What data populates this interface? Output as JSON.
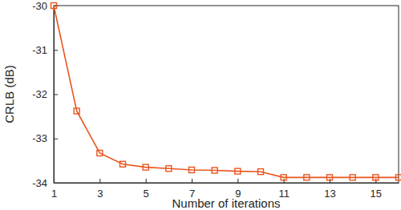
{
  "chart_data": {
    "type": "line",
    "x_label": "Number of iterations",
    "y_label": "CRLB (dB)",
    "x": [
      1,
      2,
      3,
      4,
      5,
      6,
      7,
      8,
      9,
      10,
      11,
      12,
      13,
      14,
      15,
      16
    ],
    "values": [
      -30.0,
      -32.38,
      -33.33,
      -33.58,
      -33.65,
      -33.68,
      -33.71,
      -33.72,
      -33.74,
      -33.75,
      -33.88,
      -33.88,
      -33.88,
      -33.88,
      -33.88,
      -33.88
    ],
    "color": "#e8561e",
    "marker": "square",
    "line_style": "solid",
    "xlim": [
      1,
      16
    ],
    "xticks": [
      1,
      3,
      5,
      7,
      9,
      11,
      13,
      15
    ],
    "ylim": [
      -34,
      -30
    ],
    "yticks": [
      -30,
      -31,
      -32,
      -33,
      -34
    ],
    "grid": false
  }
}
